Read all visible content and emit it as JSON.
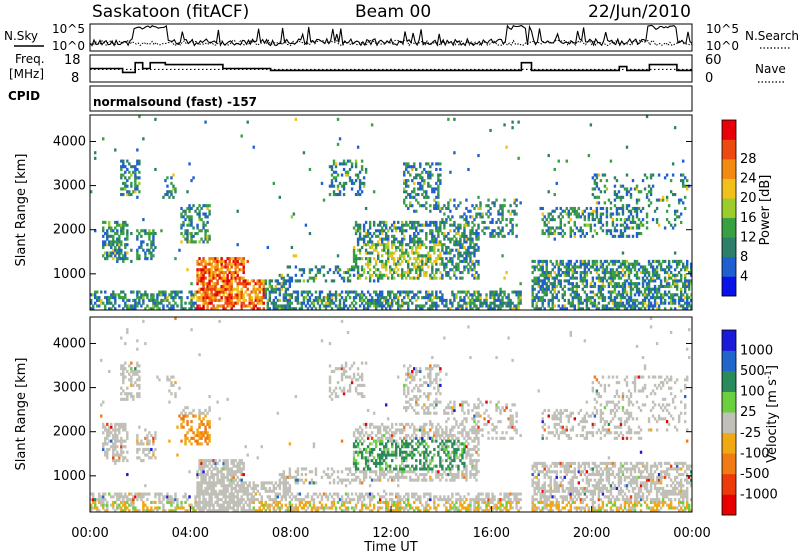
{
  "header": {
    "station": "Saskatoon (fitACF)",
    "beam": "Beam 00",
    "date": "22/Jun/2010",
    "cpid_text": "normalsound (fast) -157"
  },
  "labels": {
    "nsky": "N.Sky",
    "freq_top": "Freq.",
    "freq_unit": "[MHz]",
    "cpid": "CPID",
    "nsearch": "N.Search",
    "nave": "Nave"
  },
  "chart_data": [
    {
      "type": "line",
      "name": "counts",
      "series": [
        {
          "name": "N.Sky"
        },
        {
          "name": "N.Search"
        }
      ],
      "left_ticks": [
        "10^5",
        "10^0"
      ],
      "right_ticks": [
        "10^5",
        "10^0"
      ],
      "x_range_hours": [
        0,
        24
      ]
    },
    {
      "type": "line",
      "name": "frequency",
      "left_ticks": [
        18,
        8
      ],
      "right_ticks": [
        60,
        0
      ],
      "series": [
        {
          "name": "Freq.",
          "points": [
            [
              0,
              13
            ],
            [
              1.3,
              13
            ],
            [
              1.3,
              11
            ],
            [
              1.8,
              11
            ],
            [
              1.8,
              16
            ],
            [
              2.1,
              16
            ],
            [
              2.1,
              13
            ],
            [
              2.4,
              13
            ],
            [
              2.4,
              16
            ],
            [
              3,
              16
            ],
            [
              3,
              15
            ],
            [
              5.3,
              15
            ],
            [
              5.3,
              13
            ],
            [
              7.2,
              13
            ],
            [
              7.2,
              12
            ],
            [
              17.2,
              12
            ],
            [
              17.2,
              16
            ],
            [
              17.6,
              16
            ],
            [
              17.6,
              12
            ],
            [
              21.1,
              12
            ],
            [
              21.1,
              14
            ],
            [
              21.4,
              14
            ],
            [
              21.4,
              12
            ],
            [
              22.3,
              12
            ],
            [
              22.3,
              15
            ],
            [
              23.4,
              15
            ],
            [
              23.4,
              12
            ],
            [
              24,
              12
            ]
          ]
        },
        {
          "name": "Nave",
          "points": [
            [
              0,
              12
            ],
            [
              24,
              12
            ]
          ]
        }
      ]
    },
    {
      "type": "heatmap",
      "name": "power",
      "xlabel": "",
      "ylabel": "Slant Range [km]",
      "ylim": [
        180,
        4600
      ],
      "y_ticks": [
        1000,
        2000,
        3000,
        4000
      ],
      "colorbar": {
        "label": "Power [dB]",
        "ticks": [
          4,
          8,
          12,
          16,
          20,
          24,
          28
        ],
        "colors": [
          "#0a12e8",
          "#1f5fd0",
          "#2e7f6a",
          "#38a040",
          "#9ccc2c",
          "#f2c01a",
          "#f28a14",
          "#ec4a10",
          "#e8000a"
        ]
      }
    },
    {
      "type": "heatmap",
      "name": "velocity",
      "xlabel": "Time UT",
      "ylabel": "Slant Range [km]",
      "ylim": [
        180,
        4600
      ],
      "y_ticks": [
        1000,
        2000,
        3000,
        4000
      ],
      "x_ticks": [
        "00:00",
        "04:00",
        "08:00",
        "12:00",
        "16:00",
        "20:00",
        "00:00"
      ],
      "colorbar": {
        "label": "Velocity [m s-1]",
        "ticks": [
          "1000",
          "500",
          "100",
          "25",
          "-25",
          "-100",
          "-500",
          "-1000"
        ],
        "colors": [
          "#1a1ad8",
          "#2266cc",
          "#2a8a5a",
          "#6ad040",
          "#c0c0b8",
          "#f0a814",
          "#f07a14",
          "#ec3a0a",
          "#e80000"
        ]
      }
    }
  ]
}
